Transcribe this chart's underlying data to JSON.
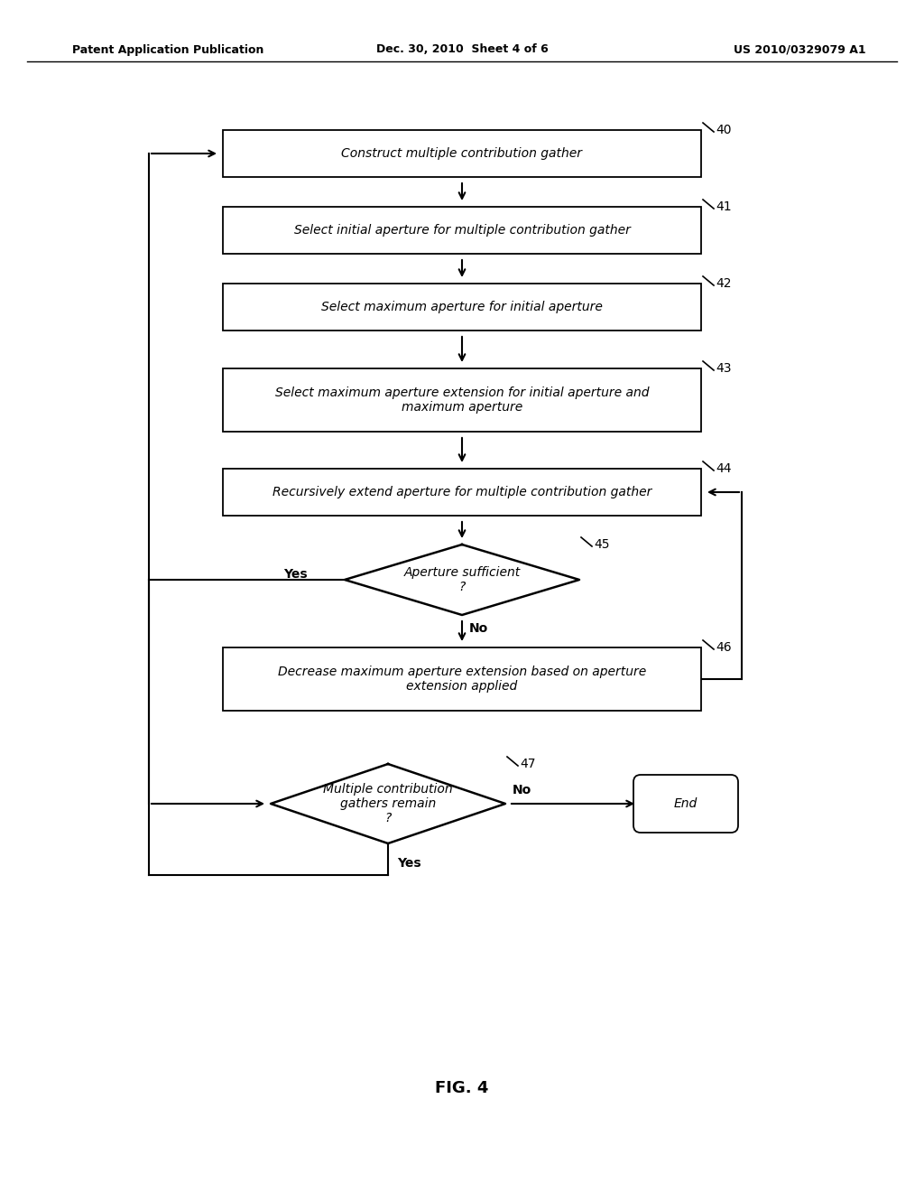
{
  "header_left": "Patent Application Publication",
  "header_center": "Dec. 30, 2010  Sheet 4 of 6",
  "header_right": "US 2010/0329079 A1",
  "fig_label": "FIG. 4",
  "bg_color": "#ffffff",
  "line_color": "#000000",
  "text_color": "#000000",
  "box40_label": "Construct multiple contribution gather",
  "box41_label": "Select initial aperture for multiple contribution gather",
  "box42_label": "Select maximum aperture for initial aperture",
  "box43_label": "Select maximum aperture extension for initial aperture and\nmaximum aperture",
  "box44_label": "Recursively extend aperture for multiple contribution gather",
  "dia45_label": "Aperture sufficient\n?",
  "box46_label": "Decrease maximum aperture extension based on aperture\nextension applied",
  "dia47_label": "Multiple contribution\ngathers remain\n?",
  "end_label": "End",
  "label40": "40",
  "label41": "41",
  "label42": "42",
  "label43": "43",
  "label44": "44",
  "label45": "45",
  "label46": "46",
  "label47": "47",
  "yes_label": "Yes",
  "no_label": "No",
  "font_size": 10,
  "header_font_size": 9
}
